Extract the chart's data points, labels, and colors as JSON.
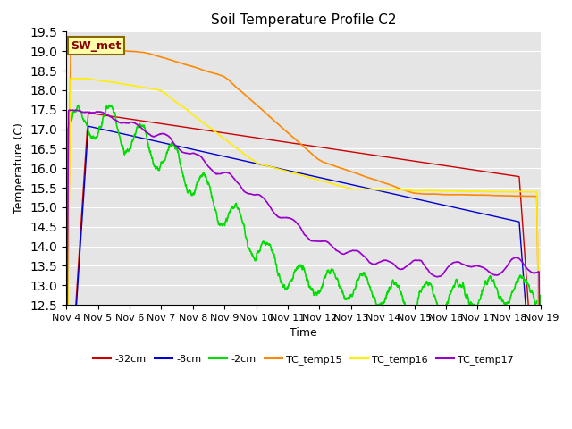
{
  "title": "Soil Temperature Profile C2",
  "xlabel": "Time",
  "ylabel": "Temperature (C)",
  "ylim": [
    12.5,
    19.5
  ],
  "xlim": [
    0,
    15
  ],
  "x_tick_labels": [
    "Nov 4",
    "Nov 5",
    "Nov 6",
    "Nov 7",
    "Nov 8",
    "Nov 9",
    "Nov 10",
    "Nov 11",
    "Nov 12",
    "Nov 13",
    "Nov 14",
    "Nov 15",
    "Nov 16",
    "Nov 17",
    "Nov 18",
    "Nov 19"
  ],
  "background_color": "#e5e5e5",
  "series": {
    "TC_temp15": {
      "color": "#ff8800",
      "linestyle": "-",
      "linewidth": 1.2
    },
    "TC_temp16": {
      "color": "#ffee00",
      "linestyle": "-",
      "linewidth": 1.2
    },
    "TC_temp17": {
      "color": "#9900cc",
      "linestyle": "-",
      "linewidth": 1.2
    },
    "minus2cm": {
      "color": "#00dd00",
      "linestyle": "-",
      "linewidth": 1.2
    },
    "minus8cm": {
      "color": "#0000cc",
      "linestyle": "-",
      "linewidth": 1.0
    },
    "minus32cm": {
      "color": "#cc0000",
      "linestyle": "-",
      "linewidth": 1.0
    }
  },
  "sw_met_box_color": "#ffffaa",
  "sw_met_border_color": "#886600",
  "sw_met_text_color": "#880000",
  "yticks": [
    12.5,
    13.0,
    13.5,
    14.0,
    14.5,
    15.0,
    15.5,
    16.0,
    16.5,
    17.0,
    17.5,
    18.0,
    18.5,
    19.0,
    19.5
  ],
  "grid_color": "#ffffff",
  "title_fontsize": 11,
  "axis_fontsize": 9,
  "tick_fontsize": 8
}
